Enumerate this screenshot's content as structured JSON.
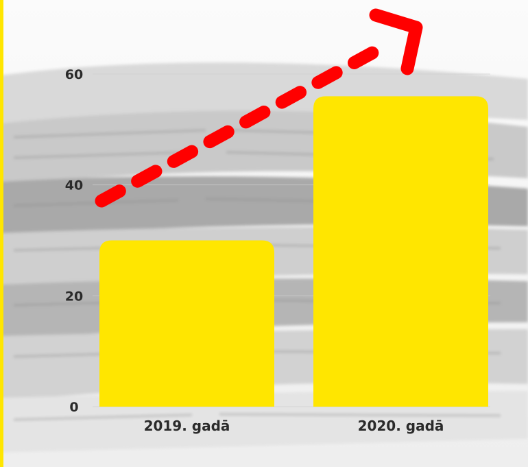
{
  "chart_data": {
    "type": "bar",
    "categories": [
      "2019. gadā",
      "2020. gadā"
    ],
    "values": [
      30,
      56
    ],
    "ylim": [
      0,
      60
    ],
    "yticks": [
      0,
      20,
      40,
      60
    ],
    "grid": true,
    "title": "",
    "xlabel": "",
    "ylabel": ""
  },
  "colors": {
    "bar": "#ffe600",
    "arrow": "#ff0000",
    "accent_edge": "#ffe600",
    "text": "#2a2a2a"
  },
  "decorations": {
    "background_image": "newspaper-stack",
    "trend_arrow": "dashed-up-arrow"
  }
}
